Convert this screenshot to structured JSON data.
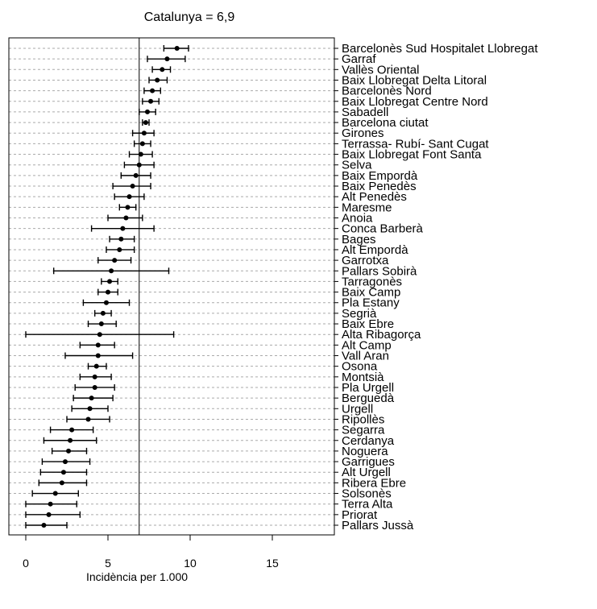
{
  "chart_data": {
    "type": "forest",
    "title": "Catalunya = 6,9",
    "xlabel": "Incidència per 1.000",
    "reference_line": 6.9,
    "xlim": [
      -1,
      19
    ],
    "xticks": [
      0,
      5,
      10,
      15
    ],
    "grid": "dashed horizontal",
    "rows": [
      {
        "label": "Barcelonès Sud Hospitalet Llobregat",
        "est": 9.2,
        "lo": 8.4,
        "hi": 9.9
      },
      {
        "label": "Garraf",
        "est": 8.6,
        "lo": 7.4,
        "hi": 9.7
      },
      {
        "label": "Vallès Oriental",
        "est": 8.3,
        "lo": 7.7,
        "hi": 8.8
      },
      {
        "label": "Baix Llobregat Delta Litoral",
        "est": 8.0,
        "lo": 7.5,
        "hi": 8.6
      },
      {
        "label": "Barcelonès Nord",
        "est": 7.7,
        "lo": 7.2,
        "hi": 8.2
      },
      {
        "label": "Baix Llobregat Centre Nord",
        "est": 7.6,
        "lo": 7.1,
        "hi": 8.1
      },
      {
        "label": "Sabadell",
        "est": 7.4,
        "lo": 6.9,
        "hi": 7.9
      },
      {
        "label": "Barcelona ciutat",
        "est": 7.3,
        "lo": 7.1,
        "hi": 7.5
      },
      {
        "label": "Girones",
        "est": 7.2,
        "lo": 6.5,
        "hi": 7.8
      },
      {
        "label": "Terrassa- Rubí- Sant Cugat",
        "est": 7.1,
        "lo": 6.6,
        "hi": 7.6
      },
      {
        "label": "Baix Llobregat Font Santa",
        "est": 7.0,
        "lo": 6.3,
        "hi": 7.7
      },
      {
        "label": "Selva",
        "est": 6.9,
        "lo": 6.0,
        "hi": 7.8
      },
      {
        "label": "Baix Empordà",
        "est": 6.7,
        "lo": 5.8,
        "hi": 7.6
      },
      {
        "label": "Baix Penedès",
        "est": 6.5,
        "lo": 5.3,
        "hi": 7.6
      },
      {
        "label": "Alt Penedès",
        "est": 6.3,
        "lo": 5.4,
        "hi": 7.2
      },
      {
        "label": "Maresme",
        "est": 6.2,
        "lo": 5.7,
        "hi": 6.7
      },
      {
        "label": "Anoia",
        "est": 6.1,
        "lo": 5.0,
        "hi": 7.1
      },
      {
        "label": "Conca Barberà",
        "est": 5.9,
        "lo": 4.0,
        "hi": 7.8
      },
      {
        "label": "Bages",
        "est": 5.8,
        "lo": 5.1,
        "hi": 6.6
      },
      {
        "label": "Alt Empordà",
        "est": 5.7,
        "lo": 4.9,
        "hi": 6.6
      },
      {
        "label": "Garrotxa",
        "est": 5.4,
        "lo": 4.4,
        "hi": 6.4
      },
      {
        "label": "Pallars Sobirà",
        "est": 5.2,
        "lo": 1.7,
        "hi": 8.7
      },
      {
        "label": "Tarragonès",
        "est": 5.1,
        "lo": 4.6,
        "hi": 5.6
      },
      {
        "label": "Baix Camp",
        "est": 5.0,
        "lo": 4.4,
        "hi": 5.6
      },
      {
        "label": "Pla Estany",
        "est": 4.9,
        "lo": 3.5,
        "hi": 6.3
      },
      {
        "label": "Segrià",
        "est": 4.7,
        "lo": 4.2,
        "hi": 5.2
      },
      {
        "label": "Baix Ebre",
        "est": 4.6,
        "lo": 3.8,
        "hi": 5.5
      },
      {
        "label": "Alta Ribagorça",
        "est": 4.5,
        "lo": 0.0,
        "hi": 9.0
      },
      {
        "label": "Alt Camp",
        "est": 4.4,
        "lo": 3.3,
        "hi": 5.4
      },
      {
        "label": "Vall Aran",
        "est": 4.4,
        "lo": 2.4,
        "hi": 6.5
      },
      {
        "label": "Osona",
        "est": 4.3,
        "lo": 3.8,
        "hi": 4.9
      },
      {
        "label": "Montsià",
        "est": 4.2,
        "lo": 3.3,
        "hi": 5.2
      },
      {
        "label": "Pla Urgell",
        "est": 4.2,
        "lo": 3.0,
        "hi": 5.4
      },
      {
        "label": "Berguedà",
        "est": 4.0,
        "lo": 2.9,
        "hi": 5.3
      },
      {
        "label": "Urgell",
        "est": 3.9,
        "lo": 2.8,
        "hi": 5.0
      },
      {
        "label": "Ripollès",
        "est": 3.8,
        "lo": 2.5,
        "hi": 5.1
      },
      {
        "label": "Segarra",
        "est": 2.8,
        "lo": 1.5,
        "hi": 4.1
      },
      {
        "label": "Cerdanya",
        "est": 2.7,
        "lo": 1.1,
        "hi": 4.3
      },
      {
        "label": "Noguera",
        "est": 2.6,
        "lo": 1.6,
        "hi": 3.7
      },
      {
        "label": "Garrigues",
        "est": 2.4,
        "lo": 1.0,
        "hi": 3.9
      },
      {
        "label": "Alt Urgell",
        "est": 2.3,
        "lo": 0.9,
        "hi": 3.7
      },
      {
        "label": "Ribera Ebre",
        "est": 2.2,
        "lo": 0.8,
        "hi": 3.7
      },
      {
        "label": "Solsonès",
        "est": 1.8,
        "lo": 0.4,
        "hi": 3.2
      },
      {
        "label": "Terra Alta",
        "est": 1.5,
        "lo": 0.0,
        "hi": 3.1
      },
      {
        "label": "Priorat",
        "est": 1.4,
        "lo": 0.0,
        "hi": 3.3
      },
      {
        "label": "Pallars Jussà",
        "est": 1.1,
        "lo": 0.0,
        "hi": 2.5
      }
    ]
  }
}
